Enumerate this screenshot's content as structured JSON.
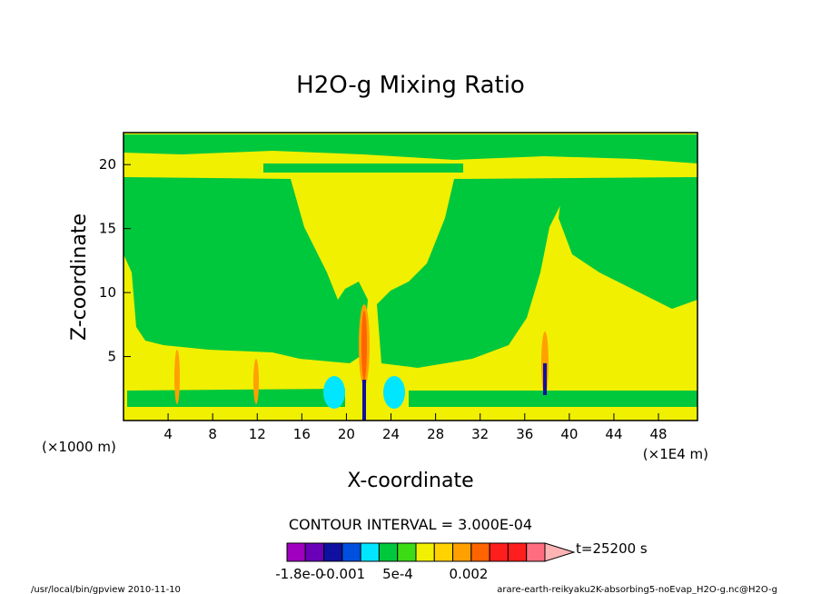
{
  "chart_data": {
    "type": "heatmap",
    "title": "H2O-g Mixing Ratio",
    "xlabel": "X-coordinate",
    "ylabel": "Z-coordinate",
    "x_unit_left": "(×1000 m)",
    "x_unit_right": "(×1E4 m)",
    "xlim": [
      0,
      51.5
    ],
    "ylim": [
      0,
      22.5
    ],
    "x_ticks": [
      "4",
      "8",
      "12",
      "16",
      "20",
      "24",
      "28",
      "32",
      "36",
      "40",
      "44",
      "48"
    ],
    "y_ticks": [
      "5",
      "10",
      "15",
      "20"
    ],
    "contour_interval": "CONTOUR INTERVAL = 3.000E-04",
    "time_label": "t=25200 s",
    "colorbar": {
      "colors": [
        "#a000c0",
        "#6a00b8",
        "#1010a0",
        "#0050e0",
        "#00e6ff",
        "#00c83c",
        "#3cdc14",
        "#f0f000",
        "#ffd200",
        "#ffa000",
        "#ff6400",
        "#ff1e1e",
        "#ff1e1e",
        "#ff6e80",
        "#ffb4b4"
      ],
      "labels": [
        "-1.8e-0",
        "-0.001",
        "5e-4",
        "0.002"
      ]
    },
    "footer_left": "/usr/local/bin/gpview  2010-11-10",
    "footer_right": "arare-earth-reikyaku2K-absorbing5-noEvap_H2O-g.nc@H2O-g"
  }
}
